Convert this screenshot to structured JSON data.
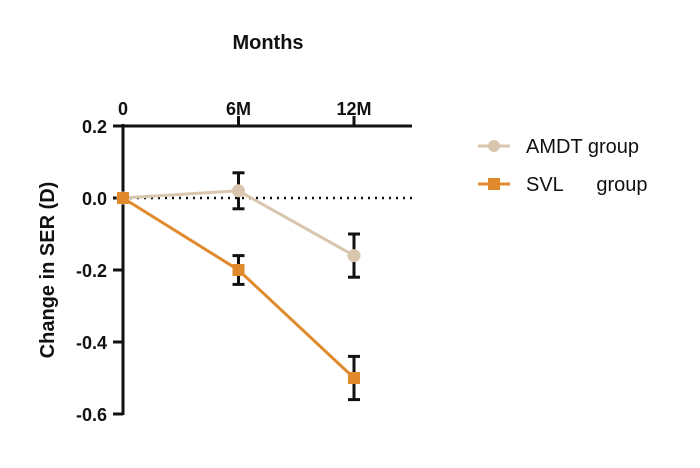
{
  "chart_data": {
    "type": "line",
    "xlabel": "Months",
    "ylabel": "Change in SER (D)",
    "categories": [
      "0",
      "6M",
      "12M"
    ],
    "ylim": [
      -0.6,
      0.2
    ],
    "yticks": [
      "0.2",
      "0.0",
      "-0.2",
      "-0.4",
      "-0.6"
    ],
    "series": [
      {
        "name": "AMDT group",
        "color": "#d9c6ae",
        "marker": "circle",
        "values": [
          0.0,
          0.02,
          -0.16
        ],
        "error": [
          0.0,
          0.05,
          0.06
        ]
      },
      {
        "name": "SVL      group",
        "color": "#e08a2c",
        "marker": "square",
        "values": [
          0.0,
          -0.2,
          -0.5
        ],
        "error": [
          0.0,
          0.04,
          0.06
        ]
      }
    ],
    "reference_line": {
      "y": 0.0,
      "style": "dotted"
    },
    "legend_position": "right"
  }
}
